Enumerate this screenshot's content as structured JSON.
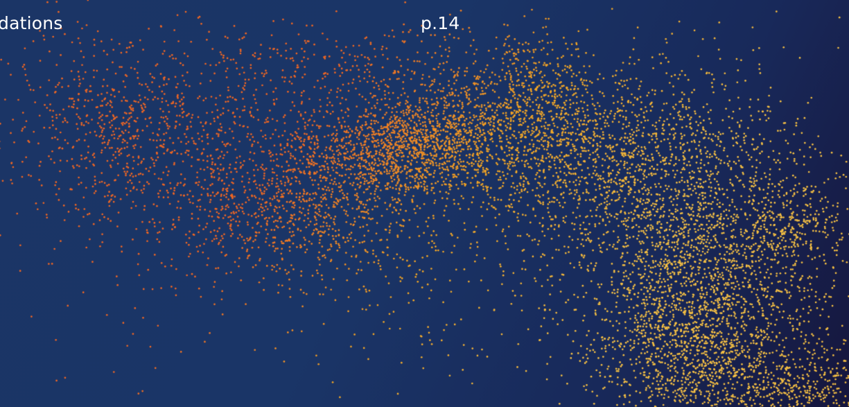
{
  "slide": {
    "section_label": "dations",
    "page_number": "p.14"
  },
  "artwork": {
    "description_icon": "dot-particle-cloud",
    "colors": {
      "background_start": "#1b3566",
      "background_end": "#16163d",
      "dot_orange": "#f26722",
      "dot_amber": "#f5a623",
      "dot_yellow": "#f7c143"
    }
  }
}
